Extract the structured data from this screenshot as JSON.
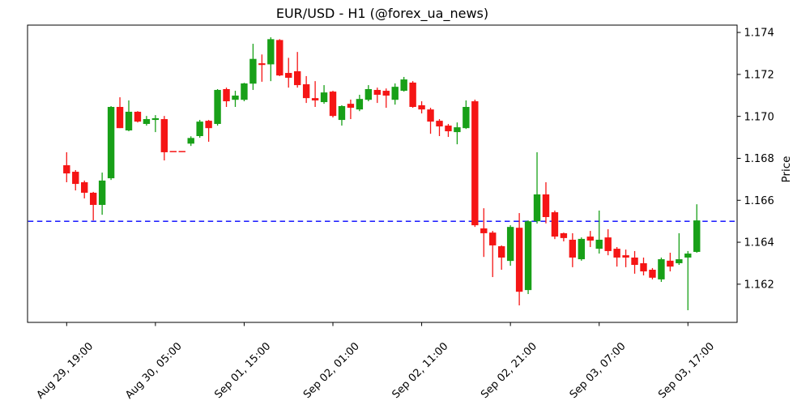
{
  "title": "EUR/USD - H1 (@forex_ua_news)",
  "chart_data": {
    "type": "candlestick",
    "title": "EUR/USD - H1 (@forex_ua_news)",
    "instrument": "EUR/USD",
    "timeframe": "H1",
    "ylabel": "Price",
    "ylim": [
      1.16018,
      1.17435
    ],
    "y_ticks": [
      1.174,
      1.172,
      1.17,
      1.168,
      1.166,
      1.164,
      1.162
    ],
    "y_tick_format_decimals": 3,
    "x_tick_labels": [
      "Aug 29, 19:00",
      "Aug 30, 05:00",
      "Sep 01, 15:00",
      "Sep 02, 01:00",
      "Sep 02, 11:00",
      "Sep 02, 21:00",
      "Sep 03, 07:00",
      "Sep 03, 17:00"
    ],
    "x_tick_indices": [
      0,
      10,
      20,
      30,
      40,
      50,
      60,
      70
    ],
    "grid": false,
    "legend": false,
    "hline": {
      "price": 1.165,
      "color": "#0000ff",
      "style": "dashed"
    },
    "colors": {
      "up": "#18a018",
      "down": "#f51515",
      "background": "#ffffff",
      "axes": "#000000"
    },
    "candles_ohlc": [
      [
        1.16767,
        1.16829,
        1.16686,
        1.16728
      ],
      [
        1.16736,
        1.16744,
        1.16647,
        1.16678
      ],
      [
        1.16686,
        1.16694,
        1.16609,
        1.16636
      ],
      [
        1.16636,
        1.1664,
        1.16504,
        1.16578
      ],
      [
        1.16578,
        1.16732,
        1.16531,
        1.16694
      ],
      [
        1.16705,
        1.17049,
        1.16697,
        1.17045
      ],
      [
        1.17045,
        1.17091,
        1.16944,
        1.16944
      ],
      [
        1.16933,
        1.17076,
        1.16929,
        1.17022
      ],
      [
        1.17022,
        1.17025,
        1.16971,
        1.16975
      ],
      [
        1.16964,
        1.17002,
        1.16956,
        1.16987
      ],
      [
        1.16983,
        1.17006,
        1.16925,
        1.16991
      ],
      [
        1.16987,
        1.17002,
        1.1679,
        1.16829
      ],
      [
        1.16832,
        1.16832,
        1.16832,
        1.16832
      ],
      [
        1.16832,
        1.16832,
        1.16832,
        1.16832
      ],
      [
        1.1687,
        1.16905,
        1.16859,
        1.16897
      ],
      [
        1.16906,
        1.16983,
        1.16898,
        1.16975
      ],
      [
        1.16979,
        1.16983,
        1.16879,
        1.16944
      ],
      [
        1.16964,
        1.1713,
        1.16956,
        1.17126
      ],
      [
        1.1713,
        1.17137,
        1.17045,
        1.17072
      ],
      [
        1.17079,
        1.17122,
        1.17045,
        1.17099
      ],
      [
        1.17079,
        1.1716,
        1.17072,
        1.17157
      ],
      [
        1.17156,
        1.17346,
        1.17126,
        1.17274
      ],
      [
        1.17253,
        1.17295,
        1.17165,
        1.17245
      ],
      [
        1.17248,
        1.17377,
        1.17168,
        1.17368
      ],
      [
        1.17364,
        1.17368,
        1.17192,
        1.17195
      ],
      [
        1.17207,
        1.17279,
        1.17137,
        1.17184
      ],
      [
        1.17215,
        1.17307,
        1.17137,
        1.17149
      ],
      [
        1.17153,
        1.17192,
        1.17064,
        1.17087
      ],
      [
        1.17087,
        1.17168,
        1.17045,
        1.17076
      ],
      [
        1.17068,
        1.17149,
        1.1706,
        1.17114
      ],
      [
        1.17118,
        1.17122,
        1.16995,
        1.17002
      ],
      [
        1.16983,
        1.17053,
        1.16956,
        1.17049
      ],
      [
        1.1706,
        1.1708,
        1.16987,
        1.17041
      ],
      [
        1.17033,
        1.17103,
        1.17025,
        1.17083
      ],
      [
        1.17079,
        1.17149,
        1.17072,
        1.1713
      ],
      [
        1.17126,
        1.17137,
        1.17064,
        1.17103
      ],
      [
        1.17122,
        1.17133,
        1.17041,
        1.17099
      ],
      [
        1.17079,
        1.17157,
        1.17056,
        1.17141
      ],
      [
        1.17122,
        1.17188,
        1.17118,
        1.17176
      ],
      [
        1.17161,
        1.17168,
        1.17041,
        1.17045
      ],
      [
        1.17053,
        1.17072,
        1.17014,
        1.17033
      ],
      [
        1.17033,
        1.17041,
        1.16917,
        1.16975
      ],
      [
        1.16979,
        1.16987,
        1.16906,
        1.16952
      ],
      [
        1.16956,
        1.16964,
        1.16902,
        1.16929
      ],
      [
        1.16925,
        1.16971,
        1.16867,
        1.16948
      ],
      [
        1.16944,
        1.17076,
        1.1694,
        1.17045
      ],
      [
        1.17072,
        1.1708,
        1.16473,
        1.16481
      ],
      [
        1.16466,
        1.16562,
        1.1633,
        1.16443
      ],
      [
        1.16446,
        1.16454,
        1.16234,
        1.16385
      ],
      [
        1.16381,
        1.16385,
        1.16269,
        1.16327
      ],
      [
        1.16311,
        1.16481,
        1.16288,
        1.16473
      ],
      [
        1.16469,
        1.16539,
        1.16099,
        1.16164
      ],
      [
        1.16172,
        1.16504,
        1.16153,
        1.165
      ],
      [
        1.165,
        1.16829,
        1.16489,
        1.16628
      ],
      [
        1.16628,
        1.16686,
        1.1649,
        1.1652
      ],
      [
        1.16543,
        1.16551,
        1.16415,
        1.16427
      ],
      [
        1.16443,
        1.16446,
        1.16404,
        1.1642
      ],
      [
        1.16412,
        1.16443,
        1.16281,
        1.16327
      ],
      [
        1.16319,
        1.16423,
        1.16312,
        1.16416
      ],
      [
        1.16427,
        1.16454,
        1.16377,
        1.16408
      ],
      [
        1.16369,
        1.16551,
        1.16346,
        1.16412
      ],
      [
        1.16423,
        1.16462,
        1.16338,
        1.16358
      ],
      [
        1.16369,
        1.16377,
        1.16284,
        1.16327
      ],
      [
        1.16338,
        1.16365,
        1.16281,
        1.16327
      ],
      [
        1.16327,
        1.16358,
        1.1625,
        1.16292
      ],
      [
        1.163,
        1.16327,
        1.16242,
        1.16261
      ],
      [
        1.16269,
        1.16277,
        1.16223,
        1.16231
      ],
      [
        1.16223,
        1.16327,
        1.16211,
        1.16319
      ],
      [
        1.16312,
        1.1635,
        1.16261,
        1.16284
      ],
      [
        1.163,
        1.16443,
        1.16292,
        1.16319
      ],
      [
        1.16327,
        1.16358,
        1.16076,
        1.16346
      ],
      [
        1.16354,
        1.16581,
        1.1635,
        1.16504
      ]
    ]
  }
}
